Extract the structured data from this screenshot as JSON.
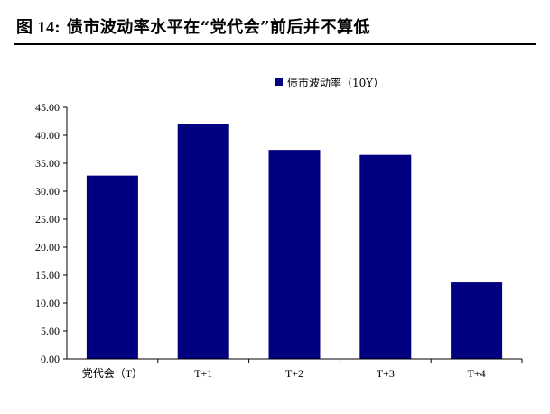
{
  "figure": {
    "label": "图 14:",
    "title": "债市波动率水平在“党代会”前后并不算低"
  },
  "chart_data": {
    "type": "bar",
    "categories": [
      "党代会（T）",
      "T+1",
      "T+2",
      "T+3",
      "T+4"
    ],
    "series": [
      {
        "name": "债市波动率（10Y）",
        "values": [
          32.8,
          42.0,
          37.4,
          36.5,
          13.7
        ],
        "color": "#000080"
      }
    ],
    "ylim": [
      0,
      45
    ],
    "yticks": [
      "0.00",
      "5.00",
      "10.00",
      "15.00",
      "20.00",
      "25.00",
      "30.00",
      "35.00",
      "40.00",
      "45.00"
    ],
    "ytick_values": [
      0,
      5,
      10,
      15,
      20,
      25,
      30,
      35,
      40,
      45
    ],
    "grid": false,
    "legend_position": "top"
  }
}
